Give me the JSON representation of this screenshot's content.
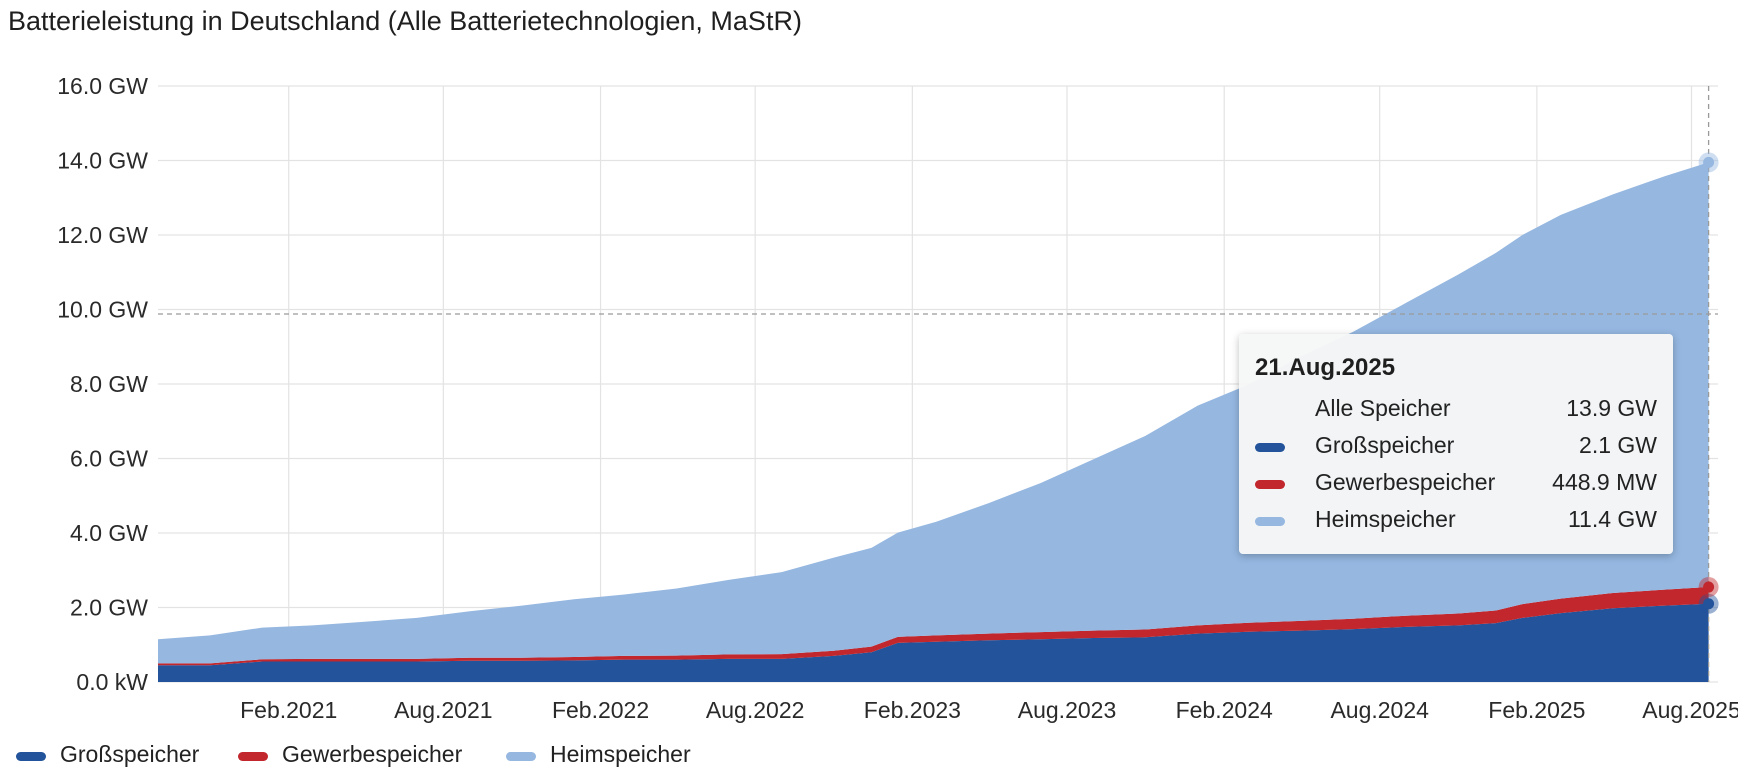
{
  "title": "Batterieleistung in Deutschland (Alle Batterietechnologien, MaStR)",
  "colors": {
    "gross": "#22539b",
    "gewerbe": "#c1272d",
    "heim": "#95b7e0"
  },
  "chart_data": {
    "type": "area",
    "stacked": true,
    "ylim": [
      0,
      16
    ],
    "y_unit": "GW",
    "y_ticks": [
      {
        "value": 0,
        "label": "0.0 kW"
      },
      {
        "value": 2,
        "label": "2.0 GW"
      },
      {
        "value": 4,
        "label": "4.0 GW"
      },
      {
        "value": 6,
        "label": "6.0 GW"
      },
      {
        "value": 8,
        "label": "8.0 GW"
      },
      {
        "value": 10,
        "label": "10.0 GW"
      },
      {
        "value": 12,
        "label": "12.0 GW"
      },
      {
        "value": 14,
        "label": "14.0 GW"
      },
      {
        "value": 16,
        "label": "16.0 GW"
      }
    ],
    "xlim": [
      "2020-09-01",
      "2025-09-01"
    ],
    "x_ticks": [
      {
        "date": "2021-02-01",
        "label": "Feb.2021"
      },
      {
        "date": "2021-08-01",
        "label": "Aug.2021"
      },
      {
        "date": "2022-02-01",
        "label": "Feb.2022"
      },
      {
        "date": "2022-08-01",
        "label": "Aug.2022"
      },
      {
        "date": "2023-02-01",
        "label": "Feb.2023"
      },
      {
        "date": "2023-08-01",
        "label": "Aug.2023"
      },
      {
        "date": "2024-02-01",
        "label": "Feb.2024"
      },
      {
        "date": "2024-08-01",
        "label": "Aug.2024"
      },
      {
        "date": "2025-02-01",
        "label": "Feb.2025"
      },
      {
        "date": "2025-08-01",
        "label": "Aug.2025"
      }
    ],
    "x": [
      "2020-09-01",
      "2020-11-01",
      "2021-01-01",
      "2021-03-01",
      "2021-05-01",
      "2021-07-01",
      "2021-09-01",
      "2021-11-01",
      "2022-01-01",
      "2022-03-01",
      "2022-05-01",
      "2022-07-01",
      "2022-09-01",
      "2022-11-01",
      "2022-12-15",
      "2023-01-15",
      "2023-03-01",
      "2023-05-01",
      "2023-07-01",
      "2023-09-01",
      "2023-11-01",
      "2024-01-01",
      "2024-03-01",
      "2024-05-01",
      "2024-07-01",
      "2024-09-01",
      "2024-11-01",
      "2024-12-15",
      "2025-01-15",
      "2025-03-01",
      "2025-05-01",
      "2025-07-01",
      "2025-08-21"
    ],
    "series": [
      {
        "name": "Großspeicher",
        "key": "gross",
        "values": [
          0.45,
          0.45,
          0.55,
          0.55,
          0.55,
          0.55,
          0.57,
          0.57,
          0.58,
          0.6,
          0.6,
          0.62,
          0.62,
          0.7,
          0.8,
          1.05,
          1.08,
          1.12,
          1.15,
          1.18,
          1.2,
          1.3,
          1.35,
          1.38,
          1.42,
          1.48,
          1.52,
          1.58,
          1.72,
          1.85,
          1.98,
          2.05,
          2.1
        ]
      },
      {
        "name": "Gewerbespeicher",
        "key": "gewerbe",
        "values": [
          0.05,
          0.05,
          0.06,
          0.07,
          0.07,
          0.07,
          0.08,
          0.08,
          0.09,
          0.1,
          0.11,
          0.12,
          0.13,
          0.14,
          0.15,
          0.16,
          0.17,
          0.18,
          0.19,
          0.2,
          0.21,
          0.22,
          0.24,
          0.26,
          0.28,
          0.3,
          0.32,
          0.34,
          0.37,
          0.39,
          0.41,
          0.43,
          0.449
        ]
      },
      {
        "name": "Heimspeicher",
        "key": "heim",
        "values": [
          0.65,
          0.75,
          0.85,
          0.9,
          1.0,
          1.1,
          1.25,
          1.4,
          1.55,
          1.65,
          1.8,
          2.0,
          2.2,
          2.5,
          2.65,
          2.8,
          3.05,
          3.5,
          4.0,
          4.6,
          5.2,
          5.9,
          6.4,
          7.1,
          7.7,
          8.4,
          9.1,
          9.6,
          9.91,
          10.3,
          10.7,
          11.1,
          11.4
        ]
      }
    ]
  },
  "tooltip": {
    "date": "21.Aug.2025",
    "rows": [
      {
        "label": "Alle Speicher",
        "value": "13.9 GW",
        "color": ""
      },
      {
        "label": "Großspeicher",
        "value": "2.1 GW",
        "color": "#22539b"
      },
      {
        "label": "Gewerbespeicher",
        "value": "448.9 MW",
        "color": "#c1272d"
      },
      {
        "label": "Heimspeicher",
        "value": "11.4 GW",
        "color": "#95b7e0"
      }
    ]
  },
  "legend": [
    {
      "label": "Großspeicher",
      "color": "#22539b"
    },
    {
      "label": "Gewerbespeicher",
      "color": "#c1272d"
    },
    {
      "label": "Heimspeicher",
      "color": "#95b7e0"
    }
  ]
}
